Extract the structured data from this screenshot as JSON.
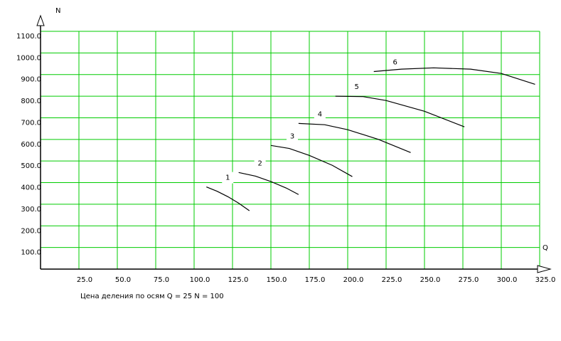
{
  "chart_data": {
    "type": "line",
    "x_label": "Q",
    "y_label": "N",
    "footnote": "Цена деления по осям Q = 25   N = 100",
    "xlim": [
      0,
      325
    ],
    "ylim": [
      0,
      1100
    ],
    "xticks": [
      {
        "value": 25,
        "label": "25.0"
      },
      {
        "value": 50,
        "label": "50.0"
      },
      {
        "value": 75,
        "label": "75.0"
      },
      {
        "value": 100,
        "label": "100.0"
      },
      {
        "value": 125,
        "label": "125.0"
      },
      {
        "value": 150,
        "label": "150.0"
      },
      {
        "value": 175,
        "label": "175.0"
      },
      {
        "value": 200,
        "label": "200.0"
      },
      {
        "value": 225,
        "label": "225.0"
      },
      {
        "value": 250,
        "label": "250.0"
      },
      {
        "value": 275,
        "label": "275.0"
      },
      {
        "value": 300,
        "label": "300.0"
      },
      {
        "value": 325,
        "label": "325.0"
      }
    ],
    "yticks": [
      {
        "value": 100,
        "label": "100.0"
      },
      {
        "value": 200,
        "label": "200.0"
      },
      {
        "value": 300,
        "label": "300.0"
      },
      {
        "value": 400,
        "label": "400.0"
      },
      {
        "value": 500,
        "label": "500.0"
      },
      {
        "value": 600,
        "label": "600.0"
      },
      {
        "value": 700,
        "label": "700.0"
      },
      {
        "value": 800,
        "label": "800.0"
      },
      {
        "value": 900,
        "label": "900.0"
      },
      {
        "value": 1000,
        "label": "1000.0"
      },
      {
        "value": 1100,
        "label": "1100.0"
      }
    ],
    "grid": true,
    "grid_color": "#00cc00",
    "series": [
      {
        "name": "1",
        "color": "#000000",
        "x": [
          108,
          115,
          122,
          129,
          136
        ],
        "values": [
          380,
          360,
          335,
          305,
          270
        ]
      },
      {
        "name": "2",
        "color": "#000000",
        "x": [
          129,
          140,
          150,
          160,
          168
        ],
        "values": [
          447,
          430,
          405,
          375,
          345
        ]
      },
      {
        "name": "3",
        "color": "#000000",
        "x": [
          150,
          162,
          175,
          190,
          203
        ],
        "values": [
          572,
          558,
          526,
          480,
          428
        ]
      },
      {
        "name": "4",
        "color": "#000000",
        "x": [
          168,
          185,
          200,
          220,
          241
        ],
        "values": [
          674,
          668,
          645,
          600,
          539
        ]
      },
      {
        "name": "5",
        "color": "#000000",
        "x": [
          192,
          210,
          225,
          250,
          276
        ],
        "values": [
          800,
          798,
          780,
          730,
          658
        ]
      },
      {
        "name": "6",
        "color": "#000000",
        "x": [
          217,
          235,
          256,
          280,
          300,
          322
        ],
        "values": [
          914,
          925,
          931,
          925,
          905,
          855
        ]
      }
    ]
  }
}
